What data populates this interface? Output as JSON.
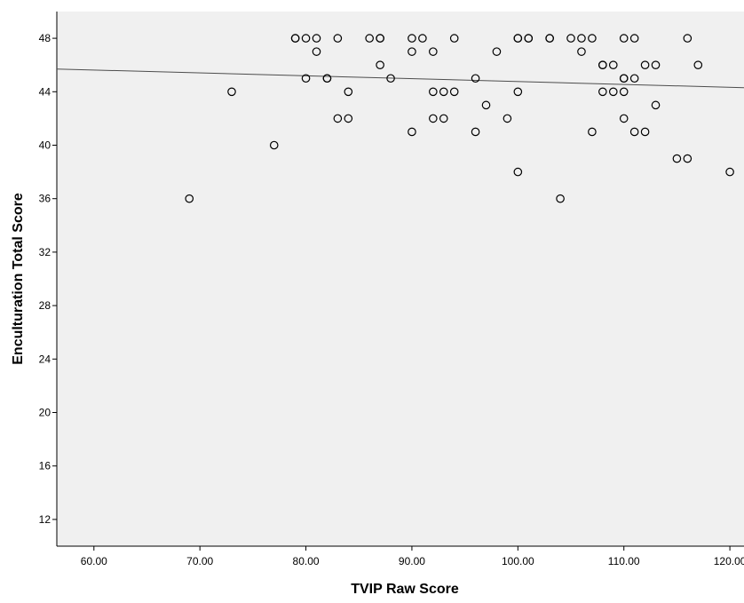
{
  "chart_data": {
    "type": "scatter",
    "title": "",
    "xlabel": "TVIP Raw Score",
    "ylabel": "Enculturation Total Score",
    "xlim": [
      56.5,
      121.5
    ],
    "ylim": [
      10,
      50
    ],
    "x_ticks": [
      60,
      70,
      80,
      90,
      100,
      110,
      120
    ],
    "x_tick_labels": [
      "60.00",
      "70.00",
      "80.00",
      "90.00",
      "100.00",
      "110.00",
      "120.00"
    ],
    "y_ticks": [
      12,
      16,
      20,
      24,
      28,
      32,
      36,
      40,
      44,
      48
    ],
    "y_tick_labels": [
      "12",
      "16",
      "20",
      "24",
      "28",
      "32",
      "36",
      "40",
      "44",
      "48"
    ],
    "grid": false,
    "background": "#f0f0f0",
    "marker_color": "#000000",
    "fit_line": {
      "x": [
        56.5,
        121.5
      ],
      "y": [
        45.7,
        44.3
      ],
      "color": "#4d4d4d"
    },
    "points": [
      [
        69,
        36
      ],
      [
        73,
        44
      ],
      [
        77,
        40
      ],
      [
        79,
        48
      ],
      [
        79,
        48
      ],
      [
        80,
        48
      ],
      [
        80,
        45
      ],
      [
        81,
        48
      ],
      [
        81,
        47
      ],
      [
        82,
        45
      ],
      [
        82,
        45
      ],
      [
        83,
        48
      ],
      [
        83,
        42
      ],
      [
        84,
        44
      ],
      [
        84,
        42
      ],
      [
        86,
        48
      ],
      [
        87,
        48
      ],
      [
        87,
        48
      ],
      [
        87,
        46
      ],
      [
        88,
        45
      ],
      [
        90,
        48
      ],
      [
        90,
        47
      ],
      [
        90,
        41
      ],
      [
        91,
        48
      ],
      [
        92,
        47
      ],
      [
        92,
        44
      ],
      [
        92,
        42
      ],
      [
        93,
        44
      ],
      [
        93,
        42
      ],
      [
        94,
        48
      ],
      [
        94,
        44
      ],
      [
        96,
        45
      ],
      [
        96,
        41
      ],
      [
        97,
        43
      ],
      [
        98,
        47
      ],
      [
        99,
        42
      ],
      [
        100,
        48
      ],
      [
        100,
        48
      ],
      [
        100,
        44
      ],
      [
        100,
        38
      ],
      [
        101,
        48
      ],
      [
        101,
        48
      ],
      [
        103,
        48
      ],
      [
        103,
        48
      ],
      [
        104,
        36
      ],
      [
        105,
        48
      ],
      [
        106,
        48
      ],
      [
        106,
        47
      ],
      [
        107,
        48
      ],
      [
        107,
        41
      ],
      [
        108,
        46
      ],
      [
        108,
        46
      ],
      [
        108,
        44
      ],
      [
        109,
        46
      ],
      [
        109,
        44
      ],
      [
        110,
        48
      ],
      [
        110,
        45
      ],
      [
        110,
        45
      ],
      [
        110,
        44
      ],
      [
        110,
        42
      ],
      [
        111,
        48
      ],
      [
        111,
        45
      ],
      [
        111,
        41
      ],
      [
        112,
        46
      ],
      [
        112,
        41
      ],
      [
        113,
        46
      ],
      [
        113,
        43
      ],
      [
        115,
        39
      ],
      [
        116,
        48
      ],
      [
        116,
        39
      ],
      [
        117,
        46
      ],
      [
        120,
        38
      ]
    ]
  }
}
